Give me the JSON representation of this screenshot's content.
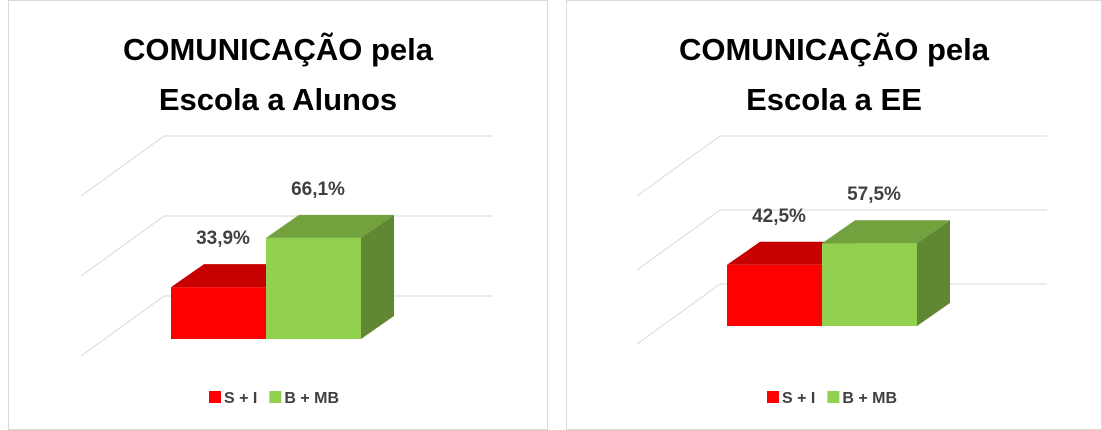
{
  "chart_data": [
    {
      "type": "bar3d",
      "title": "COMUNICAÇÃO pela Escola a Alunos",
      "series": [
        {
          "name": "S + I",
          "color": "#ff0000",
          "values": [
            33.9
          ],
          "value_labels": [
            "33,9%"
          ]
        },
        {
          "name": "B + MB",
          "color": "#92d050",
          "values": [
            66.1
          ],
          "value_labels": [
            "66,1%"
          ]
        }
      ],
      "ylim": [
        0,
        100
      ],
      "yticks": [
        0,
        50,
        100
      ],
      "grid": true,
      "legend": "bottom"
    },
    {
      "type": "bar3d",
      "title": "COMUNICAÇÃO pela Escola a EE",
      "series": [
        {
          "name": "S + I",
          "color": "#ff0000",
          "values": [
            42.5
          ],
          "value_labels": [
            "42,5%"
          ]
        },
        {
          "name": "B + MB",
          "color": "#92d050",
          "values": [
            57.5
          ],
          "value_labels": [
            "57,5%"
          ]
        }
      ],
      "ylim": [
        0,
        100
      ],
      "yticks": [
        0,
        50,
        100
      ],
      "grid": true,
      "legend": "bottom"
    }
  ]
}
